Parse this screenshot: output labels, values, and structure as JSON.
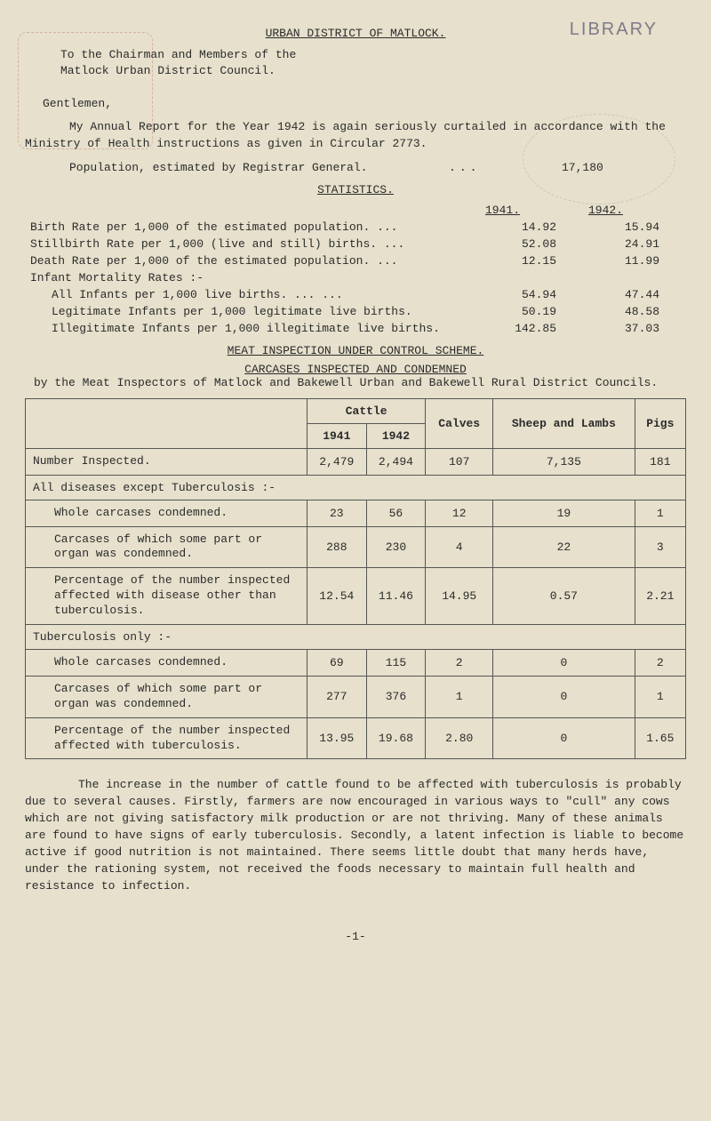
{
  "header": {
    "library": "LIBRARY",
    "title": "URBAN DISTRICT OF MATLOCK.",
    "to_line1": "To the Chairman and Members of the",
    "to_line2": "Matlock Urban District Council.",
    "gentlemen": "Gentlemen,"
  },
  "intro": {
    "para1": "My Annual Report for the Year 1942 is again seriously curtailed in accordance with the Ministry of Health instructions as given in Circular 2773.",
    "pop_label": "Population, estimated by Registrar General.",
    "pop_dots": "...",
    "pop_value": "17,180"
  },
  "stats": {
    "heading": "STATISTICS.",
    "col_1941": "1941.",
    "col_1942": "1942.",
    "rows": [
      {
        "label": "Birth Rate per 1,000 of the estimated population.  ...",
        "y41": "14.92",
        "y42": "15.94"
      },
      {
        "label": "Stillbirth Rate per 1,000 (live and still) births. ...",
        "y41": "52.08",
        "y42": "24.91"
      },
      {
        "label": "Death Rate per 1,000 of the estimated population.  ...",
        "y41": "12.15",
        "y42": "11.99"
      }
    ],
    "infant_head": "Infant Mortality Rates :-",
    "infant_rows": [
      {
        "label": "All Infants per 1,000 live births.        ...      ...",
        "y41": "54.94",
        "y42": "47.44"
      },
      {
        "label": "Legitimate Infants per 1,000 legitimate live births.",
        "y41": "50.19",
        "y42": "48.58"
      },
      {
        "label": "Illegitimate Infants per 1,000 illegitimate live births.",
        "y41": "142.85",
        "y42": "37.03"
      }
    ]
  },
  "meat": {
    "line1": "MEAT INSPECTION UNDER CONTROL SCHEME.",
    "line2": "CARCASES INSPECTED AND CONDEMNED",
    "by": "by the Meat Inspectors of Matlock and Bakewell Urban and Bakewell Rural District Councils."
  },
  "table": {
    "head": {
      "cattle": "Cattle",
      "y41": "1941",
      "y42": "1942",
      "calves": "Calves",
      "sheep": "Sheep and Lambs",
      "pigs": "Pigs"
    },
    "row_inspected": {
      "label": "Number Inspected.",
      "c41": "2,479",
      "c42": "2,494",
      "calves": "107",
      "sheep": "7,135",
      "pigs": "181"
    },
    "section1_head": "All diseases except Tuberculosis :-",
    "rows1": [
      {
        "label": "Whole carcases condemned.",
        "c41": "23",
        "c42": "56",
        "calves": "12",
        "sheep": "19",
        "pigs": "1"
      },
      {
        "label": "Carcases of which some part or organ was condemned.",
        "c41": "288",
        "c42": "230",
        "calves": "4",
        "sheep": "22",
        "pigs": "3"
      },
      {
        "label": "Percentage of the number inspected affected with disease other than tuberculosis.",
        "c41": "12.54",
        "c42": "11.46",
        "calves": "14.95",
        "sheep": "0.57",
        "pigs": "2.21"
      }
    ],
    "section2_head": "Tuberculosis only :-",
    "rows2": [
      {
        "label": "Whole carcases condemned.",
        "c41": "69",
        "c42": "115",
        "calves": "2",
        "sheep": "0",
        "pigs": "2"
      },
      {
        "label": "Carcases of which some part or organ was condemned.",
        "c41": "277",
        "c42": "376",
        "calves": "1",
        "sheep": "0",
        "pigs": "1"
      },
      {
        "label": "Percentage of the number inspected affected with tuberculosis.",
        "c41": "13.95",
        "c42": "19.68",
        "calves": "2.80",
        "sheep": "0",
        "pigs": "1.65"
      }
    ]
  },
  "closing": {
    "para": "The increase in the number of cattle found to be affected with tuberculosis is probably due to several causes. Firstly, farmers are now encouraged in various ways to \"cull\" any cows which are not giving satisfactory milk production or are not thriving. Many of these animals are found to have signs of early tuberculosis. Secondly, a latent infection is liable to become active if good nutrition is not maintained. There seems little doubt that many herds have, under the rationing system, not received the foods necessary to maintain full health and resistance to infection.",
    "page": "-1-"
  }
}
